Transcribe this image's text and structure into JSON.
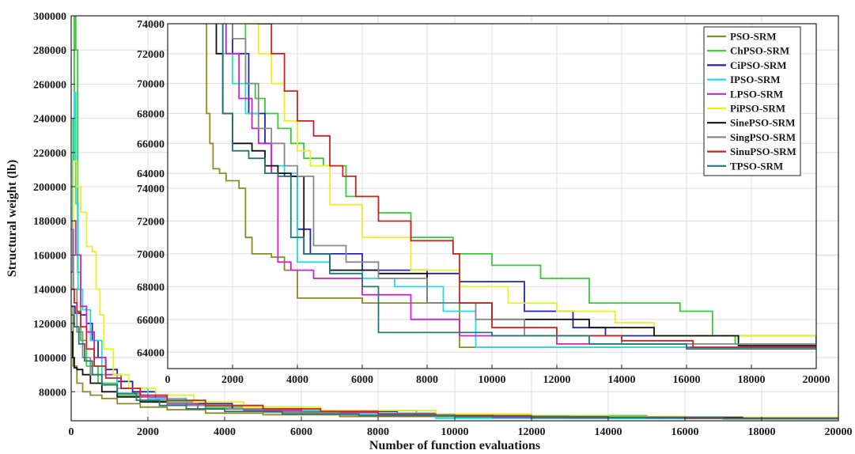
{
  "chart_data": [
    {
      "type": "line",
      "xlabel": "Number of function evaluations",
      "ylabel": "Structural weight (lb)",
      "xlim": [
        0,
        20000
      ],
      "ylim": [
        63000,
        300000
      ],
      "xticks": [
        0,
        2000,
        4000,
        6000,
        8000,
        10000,
        12000,
        14000,
        16000,
        18000,
        20000
      ],
      "yticks": [
        80000,
        100000,
        120000,
        140000,
        160000,
        180000,
        200000,
        220000,
        240000,
        260000,
        280000,
        300000
      ],
      "grid": true,
      "series": [
        {
          "name": "PSO-SRM",
          "color": "#8b8b20",
          "x": [
            0,
            50,
            150,
            300,
            500,
            800,
            1200,
            1800,
            2500,
            3500,
            5000,
            7000,
            10000,
            14000,
            17000,
            20000
          ],
          "y": [
            130000,
            95000,
            85000,
            80000,
            78000,
            76000,
            73000,
            71000,
            69500,
            67500,
            66500,
            65500,
            65000,
            64500,
            64100,
            64100
          ]
        },
        {
          "name": "ChPSO-SRM",
          "color": "#33cc33",
          "x": [
            0,
            50,
            80,
            120,
            170,
            250,
            400,
            700,
            1200,
            2000,
            3500,
            6000,
            9000,
            12000,
            15000,
            17000,
            20000
          ],
          "y": [
            140000,
            240000,
            300000,
            280000,
            150000,
            110000,
            95000,
            85000,
            78000,
            74000,
            71000,
            69000,
            67000,
            66000,
            65000,
            64300,
            64300
          ]
        },
        {
          "name": "CiPSO-SRM",
          "color": "#2222bb",
          "x": [
            0,
            100,
            250,
            400,
            550,
            700,
            900,
            1200,
            1600,
            2200,
            3000,
            4200,
            6000,
            8500,
            11000,
            14000,
            17000,
            20000
          ],
          "y": [
            130000,
            126000,
            125000,
            120000,
            110000,
            100000,
            93000,
            86000,
            80000,
            76000,
            73000,
            70000,
            68500,
            67000,
            65500,
            65000,
            64500,
            64200
          ]
        },
        {
          "name": "IPSO-SRM",
          "color": "#22dddd",
          "x": [
            0,
            40,
            80,
            120,
            180,
            300,
            500,
            800,
            1200,
            2000,
            3000,
            5000,
            7000,
            9500,
            12000,
            20000
          ],
          "y": [
            150000,
            215000,
            255000,
            190000,
            140000,
            128000,
            110000,
            90000,
            82000,
            76000,
            72000,
            69000,
            67500,
            64500,
            64300,
            64300
          ]
        },
        {
          "name": "LPSO-SRM",
          "color": "#cc22cc",
          "x": [
            0,
            50,
            120,
            250,
            400,
            600,
            900,
            1300,
            1800,
            2500,
            3300,
            4500,
            6000,
            8000,
            11000,
            15000,
            19000,
            20000
          ],
          "y": [
            150000,
            180000,
            160000,
            130000,
            115000,
            100000,
            90000,
            82000,
            77000,
            73000,
            70000,
            69000,
            68000,
            66000,
            65000,
            64600,
            64300,
            64300
          ]
        },
        {
          "name": "PiPSO-SRM",
          "color": "#eeee22",
          "x": [
            0,
            60,
            150,
            250,
            400,
            550,
            650,
            750,
            850,
            1100,
            1500,
            2200,
            3200,
            4500,
            6500,
            9500,
            12000,
            14000,
            16000,
            20000
          ],
          "y": [
            160000,
            215000,
            200000,
            185000,
            165000,
            162000,
            140000,
            125000,
            105000,
            90000,
            82000,
            78000,
            74000,
            71000,
            69000,
            67000,
            66000,
            65500,
            65000,
            65000
          ]
        },
        {
          "name": "SinePSO-SRM",
          "color": "#111111",
          "x": [
            0,
            40,
            80,
            150,
            300,
            500,
            800,
            1200,
            1800,
            2500,
            3500,
            5000,
            7000,
            10000,
            13000,
            17500,
            20000
          ],
          "y": [
            115000,
            100000,
            94000,
            93000,
            90000,
            85000,
            80000,
            77000,
            74000,
            72000,
            70000,
            68000,
            66500,
            65500,
            65000,
            64500,
            64500
          ]
        },
        {
          "name": "SingPSO-SRM",
          "color": "#888888",
          "x": [
            0,
            60,
            150,
            300,
            500,
            800,
            1200,
            1800,
            2500,
            3500,
            5000,
            7000,
            10000,
            13000,
            16000,
            20000
          ],
          "y": [
            175000,
            140000,
            115000,
            100000,
            90000,
            84000,
            79000,
            75000,
            72000,
            70000,
            68000,
            66500,
            65500,
            65000,
            64500,
            64500
          ]
        },
        {
          "name": "SinuPSO-SRM",
          "color": "#cc2222",
          "x": [
            0,
            80,
            150,
            250,
            400,
            600,
            900,
            1300,
            1800,
            2500,
            3500,
            5000,
            6500,
            8000,
            9500,
            12000,
            16000,
            20000
          ],
          "y": [
            140000,
            132000,
            127000,
            118000,
            105000,
            95000,
            88000,
            82000,
            78000,
            75000,
            72000,
            70000,
            68500,
            67000,
            66000,
            65000,
            64500,
            64500
          ]
        },
        {
          "name": "TPSO-SRM",
          "color": "#227777",
          "x": [
            0,
            80,
            200,
            350,
            550,
            800,
            1200,
            1700,
            2300,
            3000,
            4000,
            5500,
            7500,
            10000,
            14000,
            17000,
            20000
          ],
          "y": [
            125000,
            118000,
            108000,
            98000,
            90000,
            84000,
            79000,
            75000,
            72000,
            70000,
            68500,
            67000,
            66000,
            65500,
            64800,
            64200,
            64200
          ]
        }
      ]
    },
    {
      "type": "line",
      "xlim": [
        0,
        20000
      ],
      "xticks": [
        0,
        2000,
        4000,
        6000,
        8000,
        10000,
        12000,
        14000,
        16000,
        18000,
        20000
      ],
      "yticks_top": [
        64000,
        66000,
        68000,
        70000,
        72000,
        74000
      ],
      "yticks_bottom": [
        64000,
        66000,
        68000,
        70000,
        72000,
        74000
      ],
      "grid": true,
      "legend": "top-right",
      "series": [
        {
          "name": "PSO-SRM",
          "color": "#8b8b20",
          "x": [
            1000,
            1100,
            1200,
            1300,
            1400,
            1600,
            1800,
            2200,
            2400,
            2600,
            3200,
            3600,
            4000,
            6000,
            9000,
            20000
          ],
          "y": [
            120000,
            75000,
            68000,
            66000,
            64300,
            64000,
            63500,
            74000,
            71000,
            70000,
            69800,
            69000,
            67300,
            67000,
            64300,
            64300
          ]
        },
        {
          "name": "ChPSO-SRM",
          "color": "#33cc33",
          "x": [
            2000,
            2400,
            2700,
            3000,
            3400,
            3800,
            4200,
            4800,
            5500,
            6500,
            7500,
            8800,
            10000,
            11500,
            13000,
            15800,
            16800,
            17500,
            20000
          ],
          "y": [
            120000,
            70000,
            69000,
            68000,
            67000,
            66000,
            65000,
            64500,
            73500,
            72500,
            71000,
            70000,
            69300,
            68500,
            67000,
            66500,
            65000,
            64500,
            64200
          ]
        },
        {
          "name": "CiPSO-SRM",
          "color": "#2222bb",
          "x": [
            1500,
            2000,
            2500,
            3000,
            3200,
            3600,
            4000,
            4400,
            6000,
            8000,
            9000,
            10500,
            11000,
            12500,
            13500,
            20000
          ],
          "y": [
            80000,
            72000,
            68000,
            66000,
            64000,
            63800,
            71500,
            70000,
            69000,
            68800,
            68300,
            68300,
            66500,
            65500,
            65000,
            64300
          ]
        },
        {
          "name": "IPSO-SRM",
          "color": "#22dddd",
          "x": [
            1500,
            1700,
            2000,
            2400,
            2800,
            3200,
            3600,
            4000,
            5000,
            6000,
            7000,
            8500,
            9500,
            20000
          ],
          "y": [
            80000,
            72000,
            70000,
            68000,
            66000,
            64500,
            64000,
            69500,
            69000,
            68500,
            68000,
            66500,
            64300,
            64300
          ]
        },
        {
          "name": "LPSO-SRM",
          "color": "#cc22cc",
          "x": [
            1500,
            1800,
            2200,
            2600,
            2800,
            3200,
            3400,
            3800,
            4500,
            6000,
            7500,
            9000,
            12000,
            16000,
            20000
          ],
          "y": [
            80000,
            72000,
            69000,
            67000,
            66000,
            64000,
            69500,
            69000,
            68500,
            67500,
            66000,
            65000,
            64500,
            64300,
            64300
          ]
        },
        {
          "name": "PiPSO-SRM",
          "color": "#eeee22",
          "x": [
            1700,
            2400,
            2800,
            3200,
            3600,
            4000,
            4400,
            5000,
            6000,
            7500,
            9000,
            10500,
            12000,
            13800,
            15000,
            20000
          ],
          "y": [
            80000,
            74000,
            72000,
            70000,
            67500,
            65500,
            64500,
            73000,
            71000,
            69000,
            68000,
            67000,
            66500,
            65800,
            65000,
            65000
          ]
        },
        {
          "name": "SinePSO-SRM",
          "color": "#111111",
          "x": [
            1300,
            1500,
            1700,
            2000,
            2600,
            3000,
            3400,
            3800,
            4200,
            5000,
            6500,
            8000,
            10000,
            13000,
            15000,
            17600,
            20000
          ],
          "y": [
            80000,
            72000,
            68000,
            66000,
            65500,
            64500,
            64000,
            63800,
            70000,
            69000,
            68800,
            67000,
            66000,
            65500,
            65000,
            64400,
            64400
          ]
        },
        {
          "name": "SingPSO-SRM",
          "color": "#888888",
          "x": [
            1600,
            2000,
            2400,
            2800,
            3200,
            3600,
            4000,
            4500,
            5500,
            6500,
            8000,
            9500,
            11000,
            14000,
            20000
          ],
          "y": [
            80000,
            73000,
            70000,
            67000,
            66000,
            64500,
            63800,
            70500,
            69500,
            68500,
            67000,
            66000,
            65000,
            64500,
            64500
          ]
        },
        {
          "name": "SinuPSO-SRM",
          "color": "#cc2222",
          "x": [
            2500,
            2800,
            3200,
            3600,
            4000,
            4500,
            5000,
            5400,
            5800,
            6500,
            7500,
            8800,
            9000,
            10000,
            12000,
            14000,
            16200,
            20000
          ],
          "y": [
            80000,
            74000,
            72000,
            69500,
            67500,
            66500,
            64500,
            63800,
            73500,
            72000,
            70800,
            70000,
            67000,
            65500,
            65000,
            64700,
            64300,
            64300
          ]
        },
        {
          "name": "TPSO-SRM",
          "color": "#227777",
          "x": [
            1500,
            1700,
            2000,
            2500,
            3000,
            3400,
            3800,
            4200,
            5000,
            6000,
            6500,
            8000,
            10000,
            13000,
            16000,
            20000
          ],
          "y": [
            80000,
            68000,
            65500,
            65000,
            64000,
            63800,
            71000,
            70000,
            68800,
            68000,
            65200,
            65200,
            65000,
            64500,
            64200,
            64200
          ]
        }
      ]
    }
  ]
}
